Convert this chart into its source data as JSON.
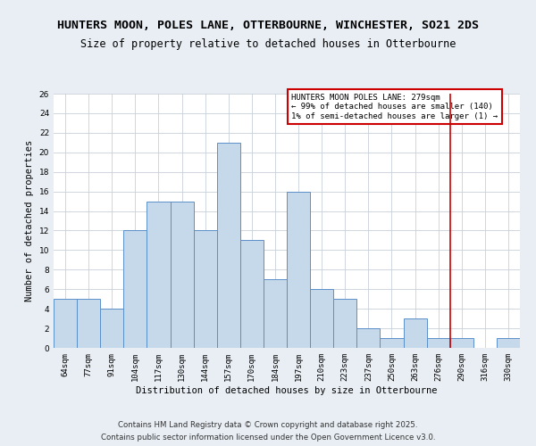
{
  "title1": "HUNTERS MOON, POLES LANE, OTTERBOURNE, WINCHESTER, SO21 2DS",
  "title2": "Size of property relative to detached houses in Otterbourne",
  "xlabel": "Distribution of detached houses by size in Otterbourne",
  "ylabel": "Number of detached properties",
  "categories": [
    "64sqm",
    "77sqm",
    "91sqm",
    "104sqm",
    "117sqm",
    "130sqm",
    "144sqm",
    "157sqm",
    "170sqm",
    "184sqm",
    "197sqm",
    "210sqm",
    "223sqm",
    "237sqm",
    "250sqm",
    "263sqm",
    "276sqm",
    "290sqm",
    "316sqm",
    "330sqm"
  ],
  "values": [
    5,
    5,
    4,
    12,
    15,
    15,
    12,
    21,
    11,
    7,
    16,
    6,
    5,
    2,
    1,
    3,
    1,
    1,
    0,
    1
  ],
  "bar_color": "#c5d9ea",
  "bar_edge_color": "#5b8fc9",
  "red_line_x": 16.5,
  "annotation_text": "HUNTERS MOON POLES LANE: 279sqm\n← 99% of detached houses are smaller (140)\n1% of semi-detached houses are larger (1) →",
  "annotation_box_color": "#ffffff",
  "annotation_edge_color": "#cc0000",
  "ylim": [
    0,
    26
  ],
  "yticks": [
    0,
    2,
    4,
    6,
    8,
    10,
    12,
    14,
    16,
    18,
    20,
    22,
    24,
    26
  ],
  "footer1": "Contains HM Land Registry data © Crown copyright and database right 2025.",
  "footer2": "Contains public sector information licensed under the Open Government Licence v3.0.",
  "background_color": "#e8eef4",
  "plot_bg_color": "#ffffff",
  "grid_color": "#c8d0d8",
  "title1_fontsize": 9.5,
  "title2_fontsize": 8.5,
  "tick_fontsize": 6.5,
  "label_fontsize": 7.5,
  "footer_fontsize": 6.2,
  "ann_fontsize": 6.5
}
